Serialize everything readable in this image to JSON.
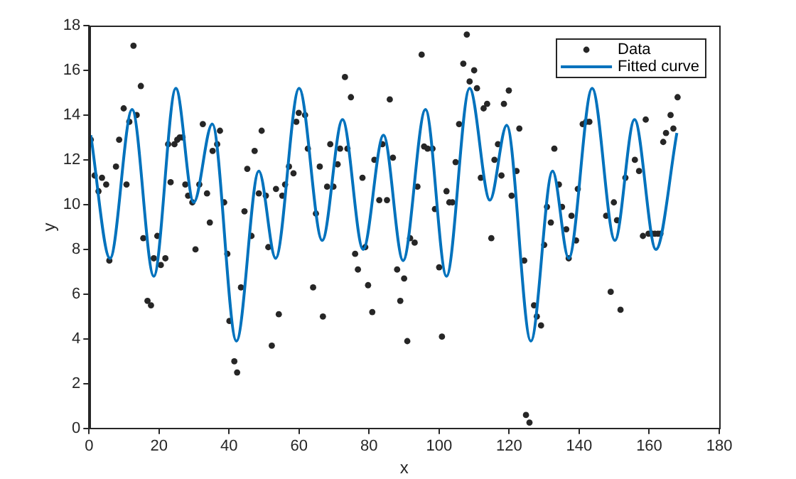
{
  "chart_data": {
    "type": "scatter",
    "xlabel": "x",
    "ylabel": "y",
    "xlim": [
      0,
      180
    ],
    "xticks": [
      0,
      20,
      40,
      60,
      80,
      100,
      120,
      140,
      160,
      180
    ],
    "ylim": [
      0,
      18
    ],
    "yticks": [
      0,
      2,
      4,
      6,
      8,
      10,
      12,
      14,
      16,
      18
    ],
    "legend": "top right",
    "grid": false,
    "series": [
      {
        "name": "Data",
        "color": "#262626",
        "marker": "circle",
        "x": [
          0.5,
          1.6,
          2.7,
          3.7,
          4.9,
          5.8,
          7.7,
          8.6,
          9.9,
          10.7,
          11.5,
          12.7,
          13.6,
          14.8,
          15.5,
          16.7,
          17.7,
          18.5,
          19.5,
          20.5,
          21.8,
          22.6,
          23.3,
          24.4,
          25.2,
          25.9,
          26.7,
          27.5,
          28.3,
          29.5,
          30.4,
          31.5,
          32.5,
          33.7,
          34.5,
          35.3,
          36.6,
          37.4,
          38.6,
          39.5,
          40.1,
          41.5,
          42.3,
          43.4,
          44.4,
          45.2,
          46.4,
          47.3,
          48.5,
          49.3,
          50.5,
          51.2,
          52.2,
          53.4,
          54.2,
          55.2,
          56.0,
          57.1,
          58.4,
          59.2,
          59.9,
          61.7,
          62.5,
          64.0,
          64.8,
          65.9,
          66.8,
          68.0,
          68.9,
          69.8,
          71.0,
          71.7,
          73.1,
          73.8,
          74.8,
          76.0,
          76.8,
          78.1,
          78.9,
          79.7,
          80.9,
          81.5,
          82.9,
          83.8,
          85.1,
          85.9,
          86.8,
          88.0,
          88.9,
          90.0,
          90.9,
          91.7,
          93.0,
          93.8,
          95.0,
          95.7,
          96.7,
          98.1,
          98.8,
          100.0,
          100.8,
          102.1,
          102.9,
          103.8,
          104.7,
          105.7,
          106.9,
          107.9,
          108.7,
          110.0,
          110.8,
          111.9,
          112.7,
          113.7,
          114.9,
          115.8,
          116.8,
          117.8,
          118.5,
          119.9,
          120.7,
          122.1,
          122.9,
          124.3,
          124.8,
          125.8,
          127.1,
          127.9,
          129.1,
          130.0,
          130.8,
          131.9,
          132.9,
          134.2,
          135.1,
          136.3,
          137.0,
          137.8,
          139.1,
          139.6,
          141.0,
          142.0,
          142.9,
          147.7,
          149.0,
          149.9,
          150.8,
          151.8,
          153.2,
          155.9,
          157.1,
          158.2,
          159.0,
          159.8,
          160.8,
          161.6,
          162.5,
          163.2,
          164.0,
          164.8,
          166.1,
          166.9,
          168.1
        ],
        "values": [
          12.9,
          11.3,
          10.6,
          11.2,
          10.9,
          7.5,
          11.7,
          12.9,
          14.3,
          10.9,
          13.7,
          17.1,
          14.0,
          15.3,
          8.5,
          5.7,
          5.5,
          7.6,
          8.6,
          7.3,
          7.6,
          12.7,
          11.0,
          12.7,
          12.9,
          13.0,
          13.0,
          10.9,
          10.4,
          10.1,
          8.0,
          10.9,
          13.6,
          10.5,
          9.2,
          12.4,
          12.7,
          13.3,
          10.1,
          7.8,
          4.8,
          3.0,
          2.5,
          6.3,
          9.7,
          11.6,
          8.6,
          12.4,
          10.5,
          13.3,
          10.4,
          8.1,
          3.7,
          10.7,
          5.1,
          10.4,
          10.9,
          11.7,
          11.4,
          13.7,
          14.1,
          14.0,
          12.5,
          6.3,
          9.6,
          11.7,
          5.0,
          10.8,
          12.7,
          10.8,
          11.8,
          12.5,
          15.7,
          12.5,
          14.8,
          7.8,
          7.1,
          11.2,
          8.1,
          6.4,
          5.2,
          12.0,
          10.2,
          12.7,
          10.2,
          14.7,
          12.1,
          7.1,
          5.7,
          6.7,
          3.9,
          8.5,
          8.3,
          10.8,
          16.7,
          12.6,
          12.5,
          12.5,
          9.8,
          7.2,
          4.1,
          10.6,
          10.1,
          10.1,
          11.9,
          13.6,
          16.3,
          17.6,
          15.5,
          16.0,
          15.2,
          11.2,
          14.3,
          14.5,
          8.5,
          12.0,
          12.7,
          11.3,
          14.5,
          15.1,
          10.4,
          11.5,
          13.4,
          7.5,
          0.6,
          0.26,
          5.5,
          5.0,
          4.6,
          8.2,
          9.9,
          9.2,
          12.5,
          10.9,
          9.9,
          8.9,
          7.6,
          9.5,
          8.4,
          10.7,
          13.6,
          13.7,
          13.7,
          9.5,
          6.1,
          10.1,
          9.3,
          5.3,
          11.2,
          12.0,
          11.5,
          8.6,
          13.8,
          8.7,
          8.7,
          8.7,
          8.7,
          8.7,
          12.8,
          13.2,
          14.0,
          13.4,
          14.8
        ]
      },
      {
        "name": "Fitted curve",
        "type": "line",
        "color": "#0072bd",
        "marker": "none",
        "line_style": "solid",
        "x": [
          0.5,
          6.0,
          12.3,
          18.5,
          24.8,
          29.9,
          35.2,
          42.1,
          48.5,
          53.3,
          60.0,
          66.6,
          72.4,
          78.3,
          84.1,
          89.7,
          96.1,
          102.1,
          108.7,
          114.5,
          119.3,
          126.2,
          132.4,
          137.0,
          143.7,
          150.2,
          155.8,
          161.9,
          167.9
        ],
        "values": [
          13.1,
          7.6,
          14.25,
          6.8,
          15.2,
          10.1,
          13.6,
          3.9,
          11.5,
          7.6,
          15.2,
          8.4,
          13.8,
          8.0,
          13.1,
          7.5,
          14.25,
          6.8,
          15.2,
          10.2,
          13.55,
          3.9,
          11.5,
          7.6,
          15.2,
          8.4,
          13.8,
          8.0,
          13.2
        ]
      }
    ]
  }
}
